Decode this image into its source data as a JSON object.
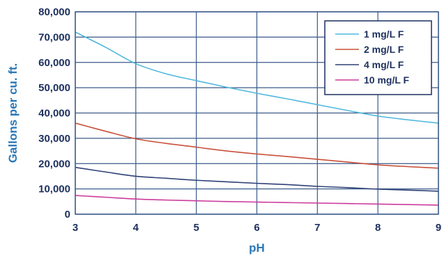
{
  "chart_data": {
    "type": "line",
    "xlabel": "pH",
    "ylabel": "Gallons per cu. ft.",
    "xlim": [
      3,
      9
    ],
    "ylim": [
      0,
      80000
    ],
    "x_ticks": [
      "3",
      "4",
      "5",
      "6",
      "7",
      "8",
      "9"
    ],
    "y_ticks": [
      "0",
      "10,000",
      "20,000",
      "30,000",
      "40,000",
      "50,000",
      "60,000",
      "70,000",
      "80,000"
    ],
    "grid": true,
    "legend_position": "top-right",
    "colors": {
      "axis_text": "#1c2f5e",
      "axis_title": "#2a77b6",
      "grid": "#3a5a8a"
    },
    "series": [
      {
        "name": "1 mg/L F",
        "color": "#4fb8dd",
        "points": [
          [
            3,
            72000
          ],
          [
            3.5,
            66000
          ],
          [
            4,
            59500
          ],
          [
            4.5,
            55500
          ],
          [
            5,
            52800
          ],
          [
            5.5,
            50200
          ],
          [
            6,
            47800
          ],
          [
            6.5,
            45600
          ],
          [
            7,
            43300
          ],
          [
            7.5,
            41000
          ],
          [
            8,
            38800
          ],
          [
            8.5,
            37300
          ],
          [
            9,
            36000
          ]
        ]
      },
      {
        "name": "2 mg/L F",
        "color": "#c8503a",
        "points": [
          [
            3,
            36000
          ],
          [
            3.5,
            32800
          ],
          [
            4,
            29800
          ],
          [
            4.5,
            28000
          ],
          [
            5,
            26500
          ],
          [
            5.5,
            25000
          ],
          [
            6,
            23800
          ],
          [
            6.5,
            22800
          ],
          [
            7,
            21700
          ],
          [
            7.5,
            20600
          ],
          [
            8,
            19500
          ],
          [
            8.5,
            18800
          ],
          [
            9,
            18200
          ]
        ]
      },
      {
        "name": "4 mg/L F",
        "color": "#2e4077",
        "points": [
          [
            3,
            18500
          ],
          [
            3.5,
            16700
          ],
          [
            4,
            15000
          ],
          [
            4.5,
            14200
          ],
          [
            5,
            13400
          ],
          [
            5.5,
            12800
          ],
          [
            6,
            12200
          ],
          [
            6.5,
            11700
          ],
          [
            7,
            11000
          ],
          [
            7.5,
            10500
          ],
          [
            8,
            9900
          ],
          [
            8.5,
            9500
          ],
          [
            9,
            9100
          ]
        ]
      },
      {
        "name": "10 mg/L F",
        "color": "#cc3a9b",
        "points": [
          [
            3,
            7400
          ],
          [
            3.5,
            6700
          ],
          [
            4,
            6000
          ],
          [
            4.5,
            5600
          ],
          [
            5,
            5300
          ],
          [
            5.5,
            5000
          ],
          [
            6,
            4800
          ],
          [
            6.5,
            4600
          ],
          [
            7,
            4400
          ],
          [
            7.5,
            4200
          ],
          [
            8,
            4000
          ],
          [
            8.5,
            3800
          ],
          [
            9,
            3600
          ]
        ]
      }
    ]
  }
}
